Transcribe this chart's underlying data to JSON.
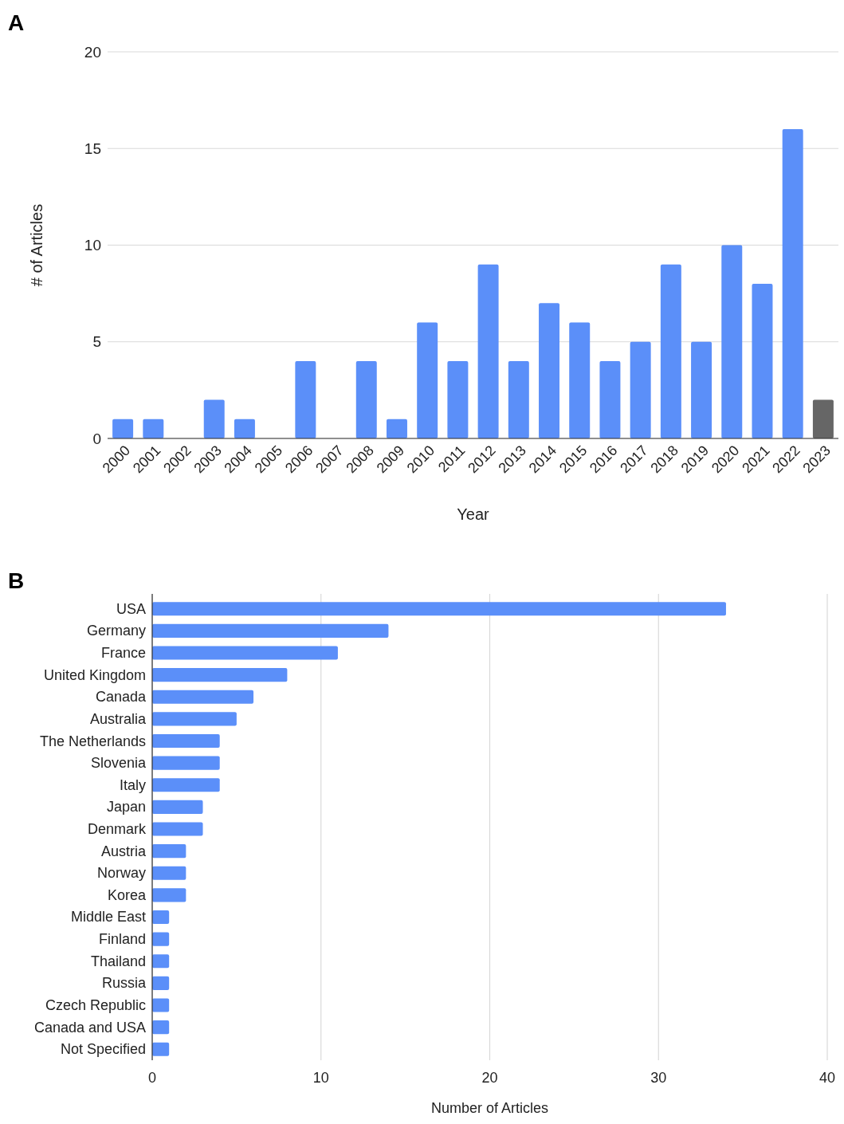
{
  "chart_data": [
    {
      "type": "bar",
      "annotations": [
        "A"
      ],
      "xlabel": "Year",
      "ylabel": "# of Articles",
      "categories": [
        "2000",
        "2001",
        "2002",
        "2003",
        "2004",
        "2005",
        "2006",
        "2007",
        "2008",
        "2009",
        "2010",
        "2011",
        "2012",
        "2013",
        "2014",
        "2015",
        "2016",
        "2017",
        "2018",
        "2019",
        "2020",
        "2021",
        "2022",
        "2023"
      ],
      "values": [
        1,
        1,
        0,
        2,
        1,
        0,
        4,
        0,
        4,
        1,
        6,
        4,
        9,
        4,
        7,
        6,
        4,
        5,
        9,
        5,
        10,
        8,
        16,
        2
      ],
      "colors": [
        "#5b8ff9",
        "#5b8ff9",
        "#5b8ff9",
        "#5b8ff9",
        "#5b8ff9",
        "#5b8ff9",
        "#5b8ff9",
        "#5b8ff9",
        "#5b8ff9",
        "#5b8ff9",
        "#5b8ff9",
        "#5b8ff9",
        "#5b8ff9",
        "#5b8ff9",
        "#5b8ff9",
        "#5b8ff9",
        "#5b8ff9",
        "#5b8ff9",
        "#5b8ff9",
        "#5b8ff9",
        "#5b8ff9",
        "#5b8ff9",
        "#5b8ff9",
        "#666666"
      ],
      "ylim": [
        0,
        20
      ],
      "yticks": [
        0,
        5,
        10,
        15,
        20
      ],
      "grid": "y"
    },
    {
      "type": "bar",
      "orientation": "horizontal",
      "annotations": [
        "B"
      ],
      "xlabel": "Number of Articles",
      "categories": [
        "USA",
        "Germany",
        "France",
        "United Kingdom",
        "Canada",
        "Australia",
        "The Netherlands",
        "Slovenia",
        "Italy",
        "Japan",
        "Denmark",
        "Austria",
        "Norway",
        "Korea",
        "Middle East",
        "Finland",
        "Thailand",
        "Russia",
        "Czech Republic",
        "Canada and USA",
        "Not Specified"
      ],
      "values": [
        34,
        14,
        11,
        8,
        6,
        5,
        4,
        4,
        4,
        3,
        3,
        2,
        2,
        2,
        1,
        1,
        1,
        1,
        1,
        1,
        1
      ],
      "color": "#5b8ff9",
      "xlim": [
        0,
        40
      ],
      "xticks": [
        0,
        10,
        20,
        30,
        40
      ],
      "grid": "x"
    }
  ]
}
